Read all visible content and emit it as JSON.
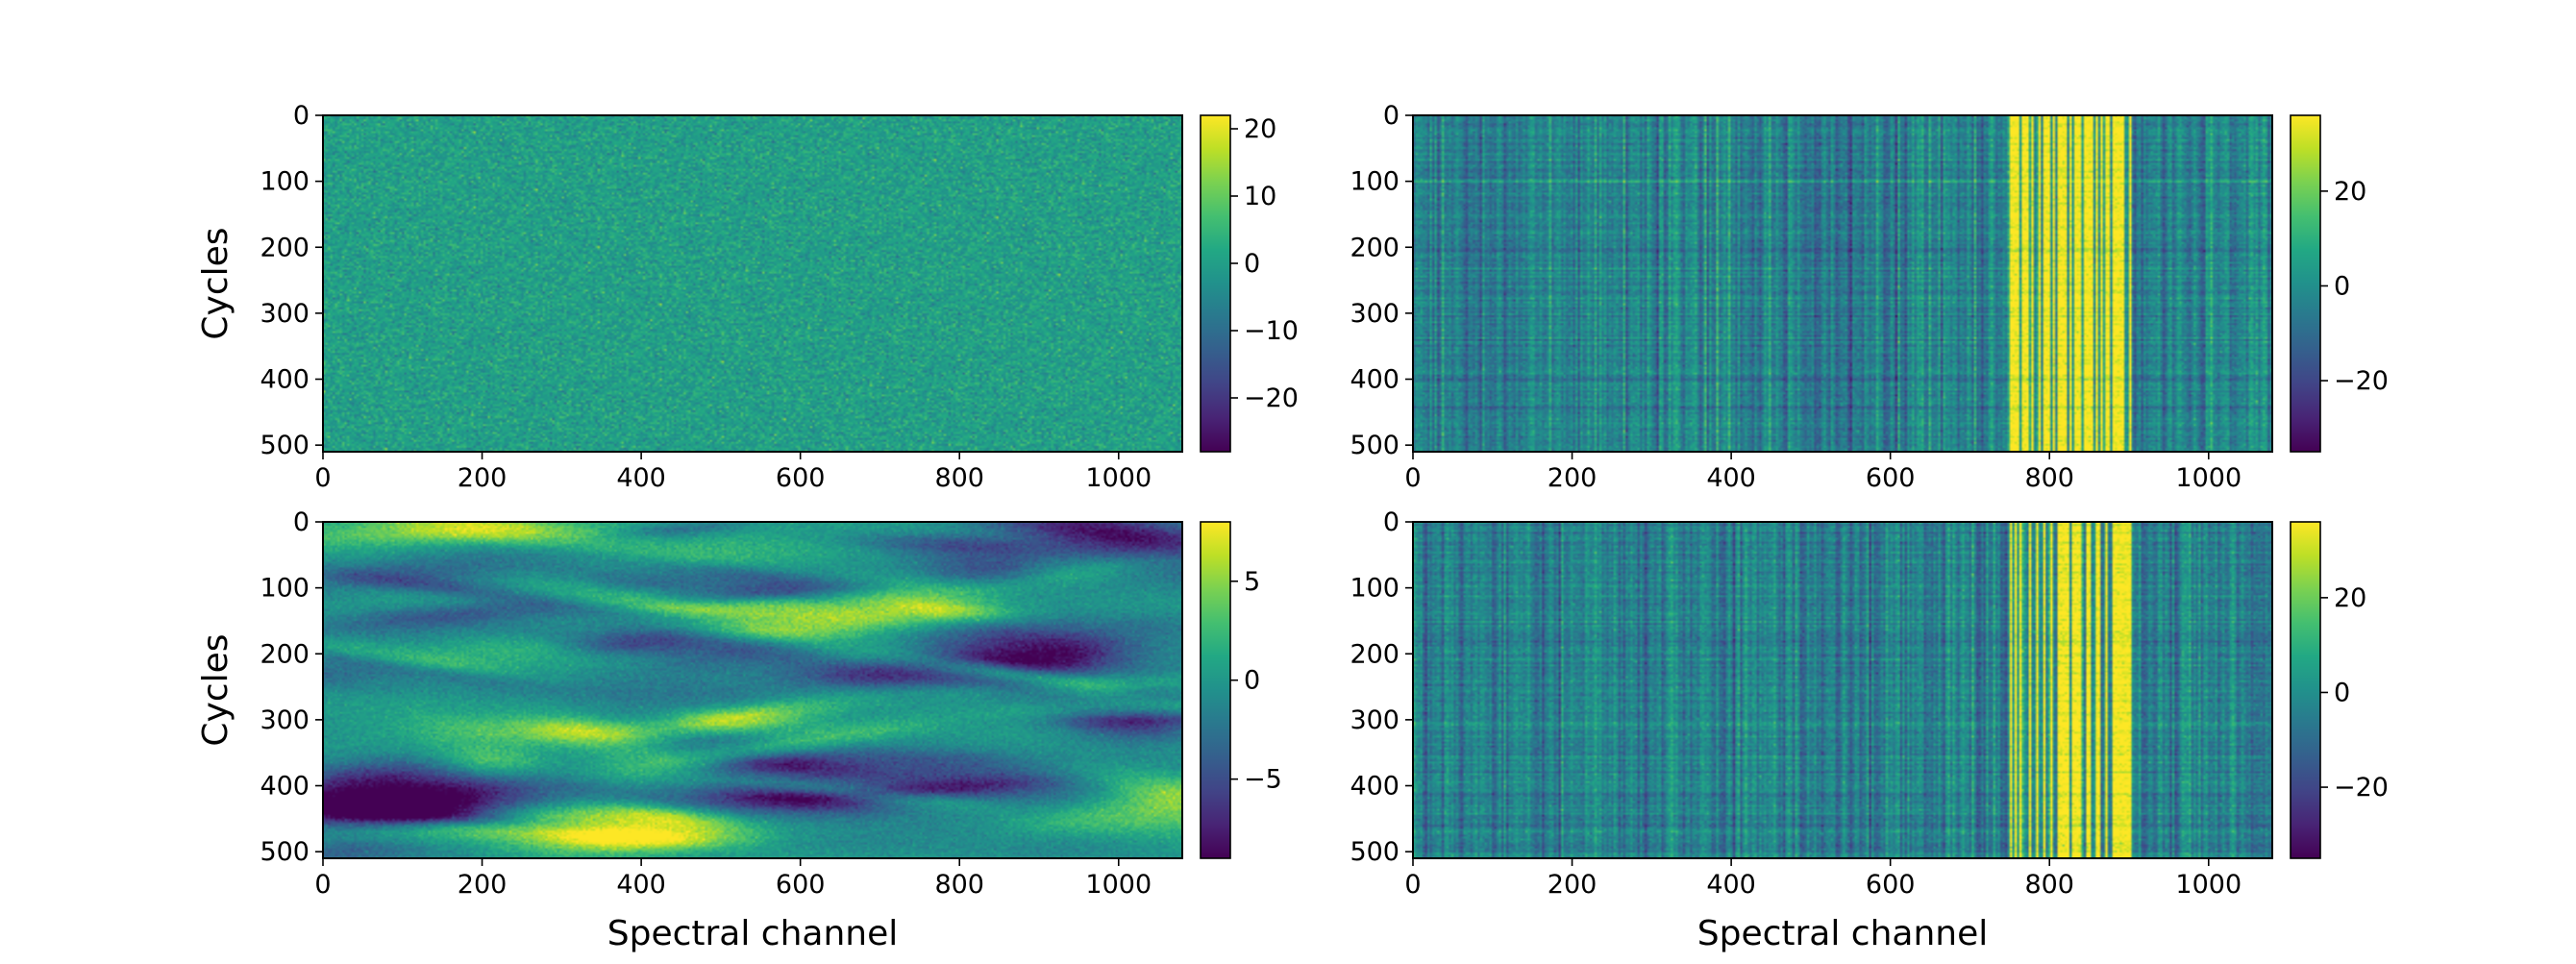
{
  "chart_data": [
    {
      "type": "heatmap",
      "position": "top-left",
      "title": "",
      "xlabel": "",
      "ylabel": "Cycles",
      "x_range": [
        0,
        1080
      ],
      "y_range": [
        0,
        510
      ],
      "xticks": [
        0,
        200,
        400,
        600,
        800,
        1000
      ],
      "yticks": [
        0,
        100,
        200,
        300,
        400,
        500
      ],
      "colormap": "viridis",
      "colorbar": {
        "min": -28,
        "max": 22,
        "ticks": [
          20,
          10,
          0,
          -10,
          -20
        ]
      },
      "pattern": "uniform random noise centered near 0"
    },
    {
      "type": "heatmap",
      "position": "top-right",
      "title": "",
      "xlabel": "",
      "ylabel": "",
      "x_range": [
        0,
        1080
      ],
      "y_range": [
        0,
        510
      ],
      "xticks": [
        0,
        200,
        400,
        600,
        800,
        1000
      ],
      "yticks": [
        0,
        100,
        200,
        300,
        400,
        500
      ],
      "colormap": "viridis",
      "colorbar": {
        "min": -35,
        "max": 36,
        "ticks": [
          20,
          0,
          -20
        ]
      },
      "pattern": "vertical stripes; bright band between channels ~750 and ~900"
    },
    {
      "type": "heatmap",
      "position": "bottom-left",
      "title": "",
      "xlabel": "Spectral channel",
      "ylabel": "Cycles",
      "x_range": [
        0,
        1080
      ],
      "y_range": [
        0,
        510
      ],
      "xticks": [
        0,
        200,
        400,
        600,
        800,
        1000
      ],
      "yticks": [
        0,
        100,
        200,
        300,
        400,
        500
      ],
      "colormap": "viridis",
      "colorbar": {
        "min": -9,
        "max": 8,
        "ticks": [
          5,
          0,
          -5
        ]
      },
      "pattern": "smooth correlated blobs elongated along channel axis"
    },
    {
      "type": "heatmap",
      "position": "bottom-right",
      "title": "",
      "xlabel": "Spectral channel",
      "ylabel": "",
      "x_range": [
        0,
        1080
      ],
      "y_range": [
        0,
        510
      ],
      "xticks": [
        0,
        200,
        400,
        600,
        800,
        1000
      ],
      "yticks": [
        0,
        100,
        200,
        300,
        400,
        500
      ],
      "colormap": "viridis",
      "colorbar": {
        "min": -35,
        "max": 36,
        "ticks": [
          20,
          0,
          -20
        ]
      },
      "pattern": "vertical stripes; bright band between channels ~750 and ~900"
    }
  ]
}
